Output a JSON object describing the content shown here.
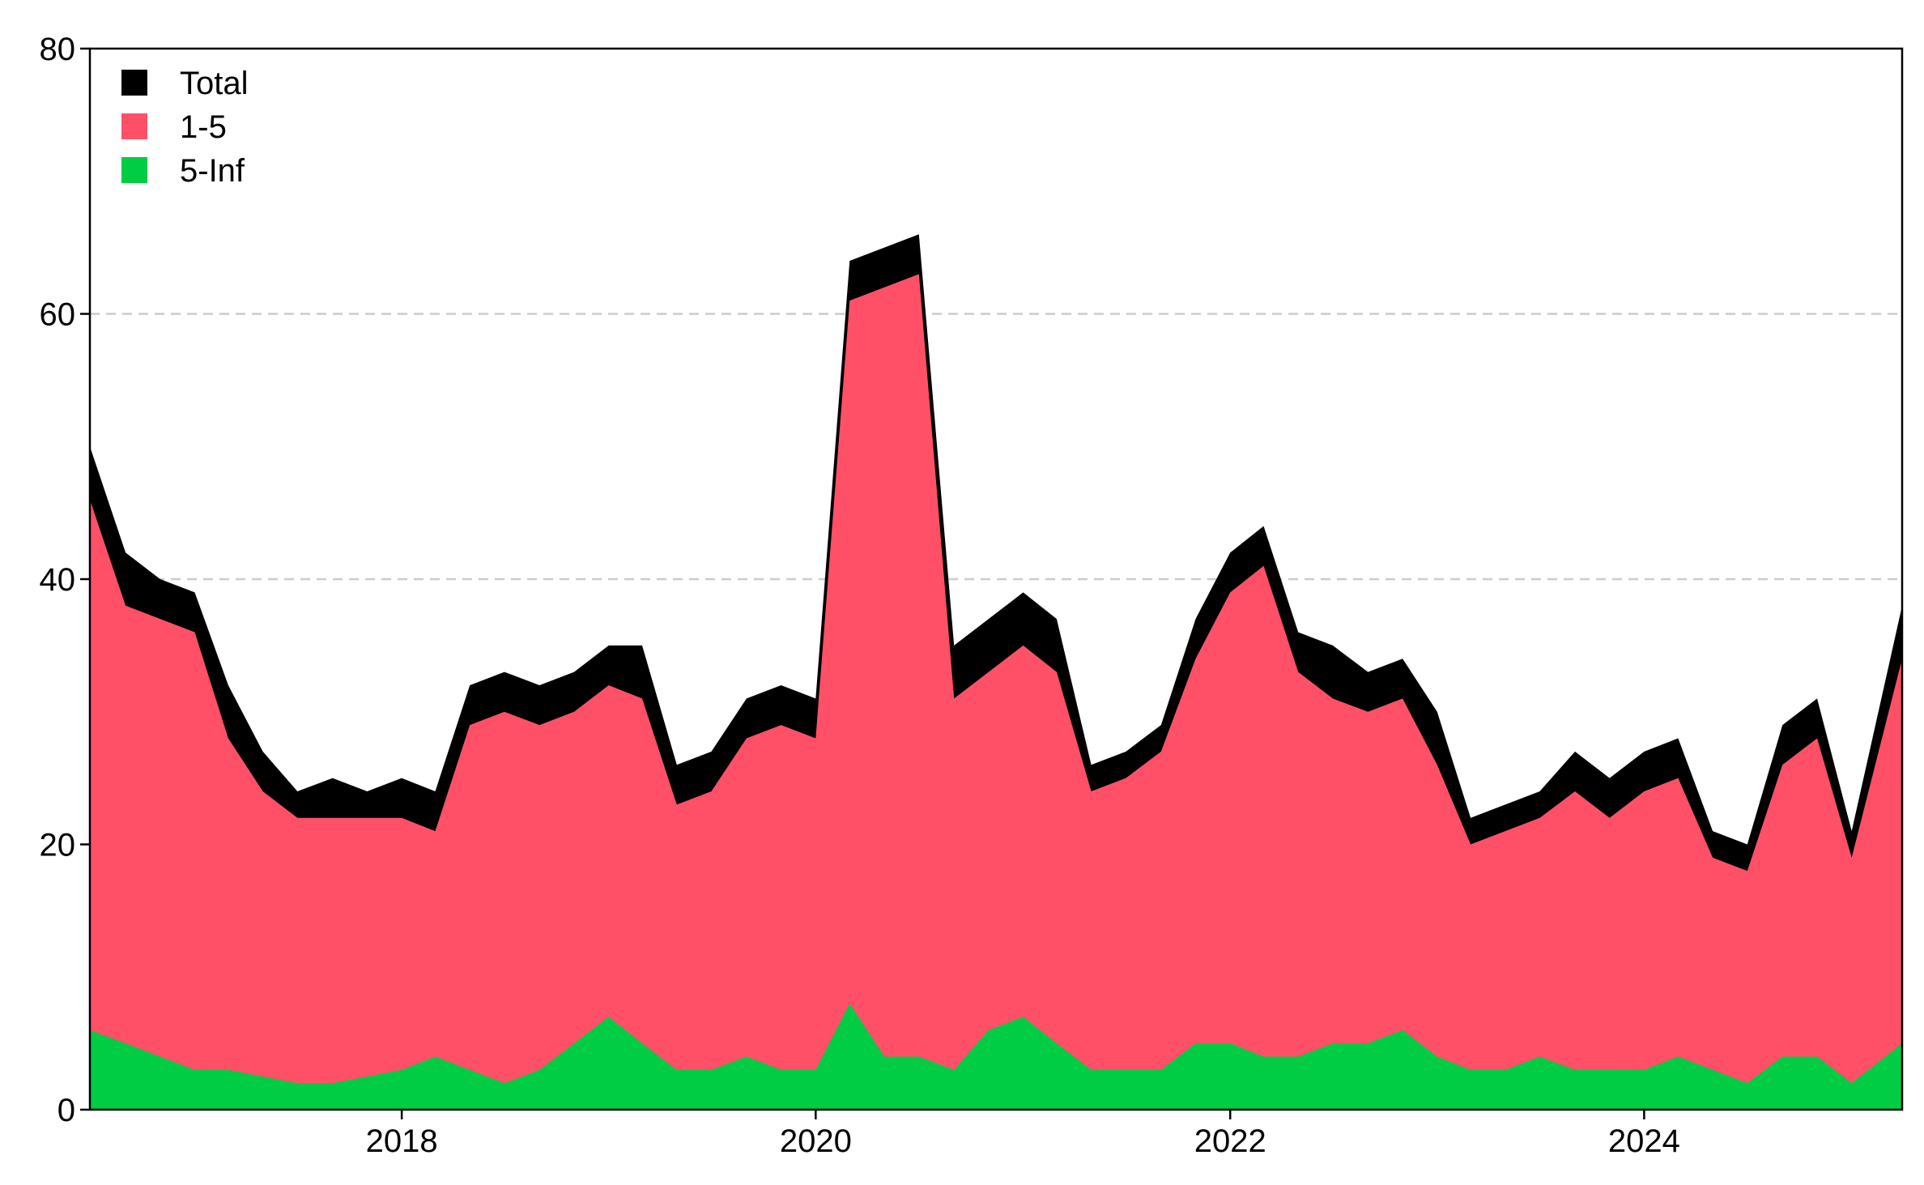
{
  "chart_data": {
    "type": "area",
    "stacked": true,
    "title": "",
    "xlabel": "",
    "ylabel": "",
    "xlim": [
      "2016-06-30",
      "2025-03-31"
    ],
    "ylim": [
      0,
      80
    ],
    "x_ticks": [
      "2018",
      "2020",
      "2022",
      "2024"
    ],
    "y_ticks": [
      "0",
      "20",
      "40",
      "60",
      "80"
    ],
    "grid": {
      "horizontal": true,
      "style": "dashed",
      "lines_at": [
        40,
        60
      ]
    },
    "legend": {
      "position": "top-left",
      "entries": [
        {
          "label": "Total",
          "color": "#000000"
        },
        {
          "label": "1-5",
          "color": "#ff5068"
        },
        {
          "label": "5-Inf",
          "color": "#00cc44"
        }
      ]
    },
    "x": [
      "2016-07",
      "2016-09",
      "2016-11",
      "2017-01",
      "2017-03",
      "2017-05",
      "2017-07",
      "2017-09",
      "2017-11",
      "2018-01",
      "2018-03",
      "2018-05",
      "2018-07",
      "2018-09",
      "2018-11",
      "2019-01",
      "2019-03",
      "2019-05",
      "2019-07",
      "2019-09",
      "2019-11",
      "2020-01",
      "2020-03",
      "2020-05",
      "2020-07",
      "2020-09",
      "2020-11",
      "2021-01",
      "2021-03",
      "2021-05",
      "2021-07",
      "2021-09",
      "2021-11",
      "2022-01",
      "2022-03",
      "2022-05",
      "2022-07",
      "2022-09",
      "2022-11",
      "2023-01",
      "2023-03",
      "2023-05",
      "2023-07",
      "2023-09",
      "2023-11",
      "2024-01",
      "2024-03",
      "2024-05",
      "2024-07",
      "2024-09",
      "2024-11",
      "2025-01",
      "2025-03"
    ],
    "series": [
      {
        "name": "Total",
        "values": [
          50,
          42,
          40,
          39,
          32,
          27,
          24,
          25,
          24,
          25,
          24,
          32,
          33,
          32,
          33,
          35,
          35,
          26,
          27,
          31,
          32,
          31,
          64,
          65,
          66,
          35,
          37,
          39,
          37,
          26,
          27,
          29,
          37,
          42,
          44,
          36,
          35,
          33,
          34,
          30,
          22,
          23,
          24,
          27,
          25,
          27,
          28,
          21,
          20,
          29,
          31,
          21,
          38
        ]
      },
      {
        "name": "1-5",
        "values": [
          46,
          38,
          37,
          36,
          28,
          24,
          22,
          22,
          22,
          22,
          21,
          29,
          30,
          29,
          30,
          32,
          31,
          23,
          24,
          28,
          29,
          28,
          61,
          62,
          63,
          31,
          33,
          35,
          33,
          24,
          25,
          27,
          34,
          39,
          41,
          33,
          31,
          30,
          31,
          26,
          20,
          21,
          22,
          24,
          22,
          24,
          25,
          19,
          18,
          26,
          28,
          19,
          34
        ]
      },
      {
        "name": "5-Inf",
        "values": [
          6,
          5,
          4,
          3,
          3,
          2.5,
          2,
          2,
          2.5,
          3,
          4,
          3,
          2,
          3,
          5,
          7,
          5,
          3,
          3,
          4,
          3,
          3,
          8,
          4,
          4,
          3,
          6,
          7,
          5,
          3,
          3,
          3,
          5,
          5,
          4,
          4,
          5,
          5,
          6,
          4,
          3,
          3,
          4,
          3,
          3,
          3,
          4,
          3,
          2,
          4,
          4,
          2,
          5
        ]
      }
    ]
  }
}
